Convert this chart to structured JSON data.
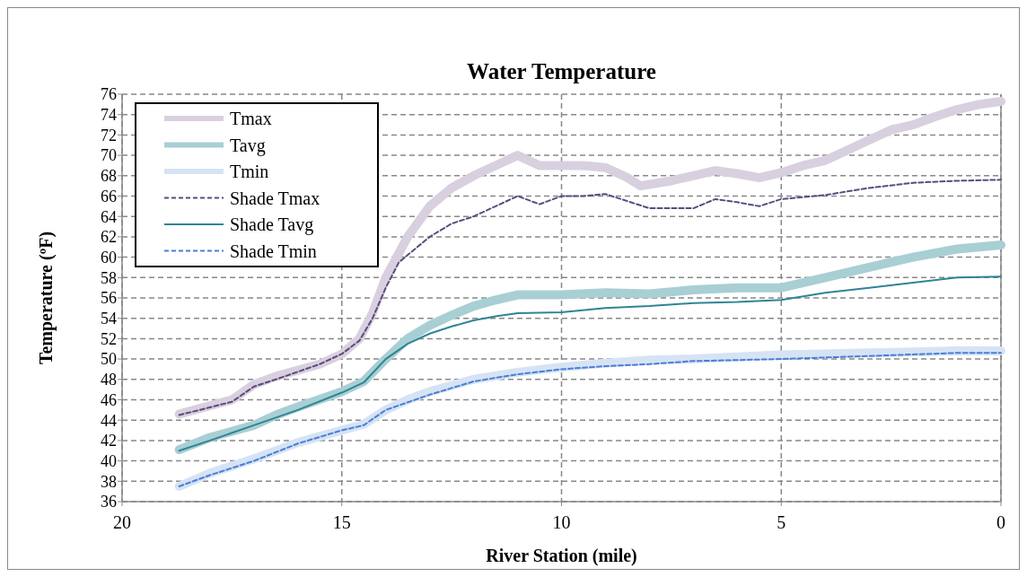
{
  "chart_data": {
    "type": "line",
    "title": "Water Temperature",
    "xlabel": "River Station (mile)",
    "ylabel": "Temperature (ºF)",
    "xlim": [
      20,
      0
    ],
    "xticks": [
      20,
      15,
      10,
      5,
      0
    ],
    "ylim": [
      36,
      76
    ],
    "yticks": [
      36,
      38,
      40,
      42,
      44,
      46,
      48,
      50,
      52,
      54,
      56,
      58,
      60,
      62,
      64,
      66,
      68,
      70,
      72,
      74,
      76
    ],
    "grid": true,
    "legend": "top left",
    "marker": "none",
    "series": [
      {
        "name": "Tmax",
        "color": "#d9d0df",
        "line_style": "solid",
        "x": [
          18.7,
          17.5,
          17,
          16.5,
          15.5,
          15,
          14.6,
          14.3,
          14,
          13.5,
          13,
          12.5,
          12,
          11.5,
          11,
          10.5,
          10,
          9.5,
          9,
          8.5,
          8.2,
          7.5,
          7,
          6.5,
          6,
          5.5,
          5,
          4.5,
          4,
          3.5,
          3,
          2.5,
          2,
          1.5,
          1,
          0.5,
          0
        ],
        "values": [
          44.6,
          46,
          47.5,
          48.3,
          49.5,
          50.5,
          52,
          54.5,
          58,
          62,
          65,
          66.8,
          68,
          69,
          70,
          69,
          69,
          69,
          68.8,
          67.8,
          67,
          67.5,
          68,
          68.5,
          68.2,
          67.8,
          68.3,
          69,
          69.5,
          70.5,
          71.5,
          72.5,
          73,
          73.8,
          74.5,
          75,
          75.3
        ]
      },
      {
        "name": "Tavg",
        "color": "#a8cfd4",
        "line_style": "solid",
        "x": [
          18.7,
          18,
          17,
          16.5,
          16,
          15,
          14.5,
          14,
          13.5,
          13,
          12.5,
          12,
          11.5,
          11,
          10,
          9,
          8,
          7,
          6,
          5,
          4,
          3,
          2,
          1,
          0
        ],
        "values": [
          41.1,
          42.3,
          43.5,
          44.5,
          45.3,
          46.8,
          47.8,
          50,
          52,
          53.3,
          54.3,
          55.2,
          55.8,
          56.3,
          56.3,
          56.5,
          56.4,
          56.8,
          57,
          57,
          58,
          59,
          60,
          60.8,
          61.2
        ]
      },
      {
        "name": "Tmin",
        "color": "#d6e3f5",
        "line_style": "solid",
        "x": [
          18.7,
          18,
          17,
          16,
          15,
          14.5,
          14,
          13.5,
          13,
          12,
          11,
          10,
          9,
          8,
          7,
          6,
          5,
          3,
          1,
          0
        ],
        "values": [
          37.5,
          38.8,
          40.2,
          41.8,
          43,
          43.6,
          45,
          46,
          46.8,
          48,
          48.7,
          49.2,
          49.6,
          49.9,
          50,
          50.2,
          50.4,
          50.6,
          50.8,
          50.8
        ]
      },
      {
        "name": "Shade Tmax",
        "color": "#5c4a7d",
        "line_style": "dashed",
        "x": [
          18.7,
          17.5,
          17,
          16.5,
          15.5,
          15,
          14.6,
          14.3,
          14,
          13.7,
          13,
          12.5,
          12,
          11.5,
          11,
          10.5,
          10,
          9.5,
          9,
          8.5,
          8,
          7,
          6.5,
          6,
          5.5,
          5,
          4,
          3,
          2,
          1,
          0
        ],
        "values": [
          44.5,
          45.8,
          47.3,
          48,
          49.5,
          50.5,
          51.8,
          54,
          57,
          59.5,
          62,
          63.3,
          64,
          65,
          66,
          65.2,
          66,
          66,
          66.2,
          65.5,
          64.8,
          64.8,
          65.7,
          65.4,
          65,
          65.7,
          66.1,
          66.8,
          67.3,
          67.5,
          67.6
        ]
      },
      {
        "name": "Shade Tavg",
        "color": "#2e8595",
        "line_style": "solid",
        "x": [
          18.7,
          18,
          17,
          16,
          15,
          14.5,
          14,
          13.5,
          13,
          12.5,
          12,
          11.5,
          11,
          10,
          9,
          8,
          7,
          6,
          5,
          4,
          3,
          2,
          1,
          0
        ],
        "values": [
          41,
          42,
          43.5,
          45,
          46.7,
          47.7,
          50,
          51.5,
          52.5,
          53.2,
          53.8,
          54.2,
          54.5,
          54.6,
          55,
          55.2,
          55.5,
          55.6,
          55.8,
          56.5,
          57,
          57.5,
          58,
          58.1
        ]
      },
      {
        "name": "Shade Tmin",
        "color": "#4a7fd4",
        "line_style": "dashed",
        "x": [
          18.7,
          18,
          17,
          16,
          15,
          14.5,
          14,
          13,
          12,
          11,
          10,
          9,
          8,
          7,
          6,
          5,
          3,
          1,
          0
        ],
        "values": [
          37.5,
          38.6,
          40,
          41.7,
          43,
          43.5,
          45,
          46.5,
          47.8,
          48.5,
          49,
          49.3,
          49.5,
          49.8,
          49.9,
          50,
          50.3,
          50.6,
          50.6
        ]
      }
    ]
  }
}
